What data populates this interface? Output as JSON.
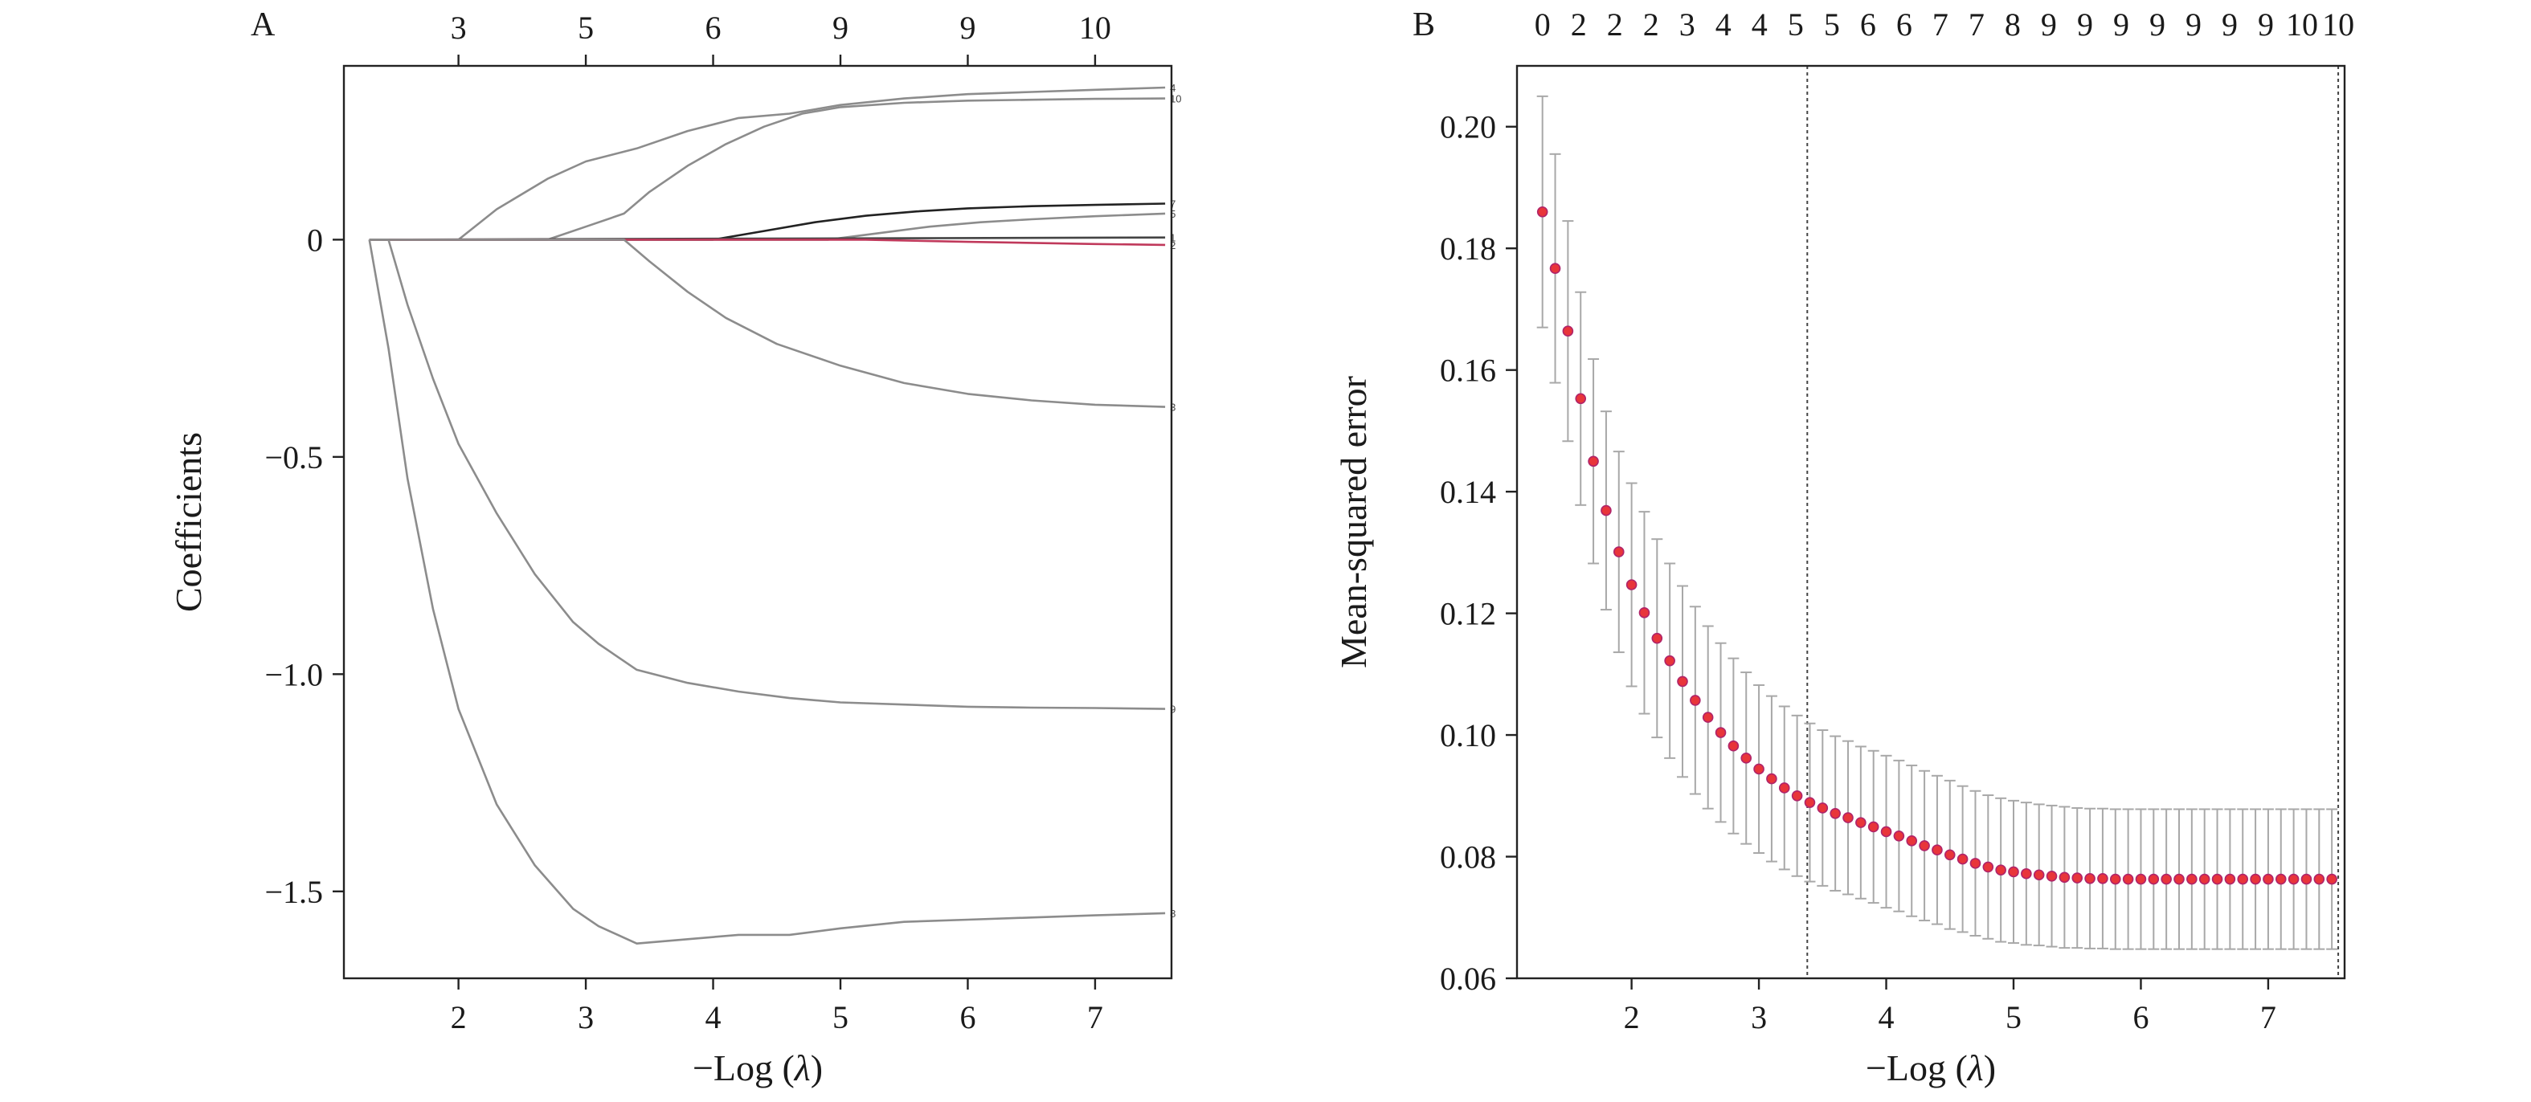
{
  "chart_data": [
    {
      "panel": "A",
      "type": "line",
      "xlabel_prefix": "−Log (",
      "xlabel_symbol": "λ",
      "xlabel_suffix": ")",
      "ylabel": "Coefficients",
      "xlim": [
        1.1,
        7.6
      ],
      "ylim": [
        -1.7,
        0.4
      ],
      "x_ticks": [
        2,
        3,
        4,
        5,
        6,
        7
      ],
      "x_tick_labels": [
        "2",
        "3",
        "4",
        "5",
        "6",
        "7"
      ],
      "y_ticks": [
        0,
        -0.5,
        -1.0,
        -1.5
      ],
      "y_tick_labels": [
        "0",
        "−0.5",
        "−1.0",
        "−1.5"
      ],
      "top_ticks": [
        2.0,
        3.0,
        4.0,
        5.0,
        6.0,
        7.0
      ],
      "top_labels": [
        "3",
        "5",
        "6",
        "9",
        "9",
        "10"
      ],
      "series": [
        {
          "label": "4",
          "color": "#8c8c8c",
          "x": [
            1.3,
            2.0,
            2.3,
            2.7,
            3.0,
            3.4,
            3.8,
            4.2,
            4.6,
            5.0,
            5.5,
            6.0,
            6.5,
            7.0,
            7.55
          ],
          "y": [
            0,
            0,
            0.07,
            0.14,
            0.18,
            0.21,
            0.25,
            0.28,
            0.29,
            0.31,
            0.325,
            0.335,
            0.34,
            0.345,
            0.35
          ]
        },
        {
          "label": "10",
          "color": "#8c8c8c",
          "x": [
            1.3,
            2.7,
            3.0,
            3.3,
            3.5,
            3.8,
            4.1,
            4.4,
            4.7,
            5.0,
            5.5,
            6.0,
            6.5,
            7.0,
            7.55
          ],
          "y": [
            0,
            0,
            0.03,
            0.06,
            0.11,
            0.17,
            0.22,
            0.26,
            0.29,
            0.305,
            0.315,
            0.32,
            0.322,
            0.324,
            0.325
          ]
        },
        {
          "label": "7",
          "color": "#222222",
          "x": [
            1.3,
            4.0,
            4.4,
            4.8,
            5.2,
            5.6,
            6.0,
            6.5,
            7.0,
            7.55
          ],
          "y": [
            0,
            0,
            0.02,
            0.04,
            0.055,
            0.065,
            0.072,
            0.077,
            0.08,
            0.083
          ]
        },
        {
          "label": "5",
          "color": "#8c8c8c",
          "x": [
            1.3,
            4.9,
            5.3,
            5.7,
            6.1,
            6.5,
            7.0,
            7.55
          ],
          "y": [
            0,
            0,
            0.015,
            0.03,
            0.04,
            0.047,
            0.054,
            0.06
          ]
        },
        {
          "label": "1",
          "color": "#444444",
          "x": [
            1.3,
            7.55
          ],
          "y": [
            0,
            0.005
          ]
        },
        {
          "label": "2",
          "color": "#c0395b",
          "x": [
            1.3,
            5.2,
            6.0,
            7.0,
            7.55
          ],
          "y": [
            0,
            0,
            -0.005,
            -0.01,
            -0.012
          ]
        },
        {
          "label": "3",
          "color": "#8c8c8c",
          "x": [
            1.3,
            3.3,
            3.5,
            3.8,
            4.1,
            4.5,
            5.0,
            5.5,
            6.0,
            6.5,
            7.0,
            7.55
          ],
          "y": [
            0,
            0,
            -0.05,
            -0.12,
            -0.18,
            -0.24,
            -0.29,
            -0.33,
            -0.355,
            -0.37,
            -0.38,
            -0.385
          ]
        },
        {
          "label": "9",
          "color": "#8c8c8c",
          "x": [
            1.3,
            1.45,
            1.6,
            1.8,
            2.0,
            2.3,
            2.6,
            2.9,
            3.1,
            3.4,
            3.8,
            4.2,
            4.6,
            5.0,
            5.5,
            6.0,
            6.5,
            7.0,
            7.55
          ],
          "y": [
            0,
            0,
            -0.15,
            -0.32,
            -0.47,
            -0.63,
            -0.77,
            -0.88,
            -0.93,
            -0.99,
            -1.02,
            -1.04,
            -1.055,
            -1.065,
            -1.07,
            -1.075,
            -1.077,
            -1.078,
            -1.08
          ]
        },
        {
          "label": "8",
          "color": "#8c8c8c",
          "x": [
            1.3,
            1.45,
            1.6,
            1.8,
            2.0,
            2.3,
            2.6,
            2.9,
            3.1,
            3.4,
            3.8,
            4.2,
            4.6,
            5.0,
            5.5,
            6.0,
            6.5,
            7.0,
            7.55
          ],
          "y": [
            0,
            -0.25,
            -0.55,
            -0.85,
            -1.08,
            -1.3,
            -1.44,
            -1.54,
            -1.58,
            -1.62,
            -1.61,
            -1.6,
            -1.6,
            -1.585,
            -1.57,
            -1.565,
            -1.56,
            -1.555,
            -1.55
          ]
        }
      ]
    },
    {
      "panel": "B",
      "type": "scatter",
      "xlabel_prefix": "−Log (",
      "xlabel_symbol": "λ",
      "xlabel_suffix": ")",
      "ylabel": "Mean-squared error",
      "xlim": [
        1.1,
        7.6
      ],
      "ylim": [
        0.06,
        0.21
      ],
      "x_ticks": [
        2,
        3,
        4,
        5,
        6,
        7
      ],
      "x_tick_labels": [
        "2",
        "3",
        "4",
        "5",
        "6",
        "7"
      ],
      "y_ticks": [
        0.06,
        0.08,
        0.1,
        0.12,
        0.14,
        0.16,
        0.18,
        0.2
      ],
      "y_tick_labels": [
        "0.06",
        "0.08",
        "0.10",
        "0.12",
        "0.14",
        "0.16",
        "0.18",
        "0.20"
      ],
      "top_labels": [
        "0",
        "2",
        "2",
        "2",
        "3",
        "4",
        "4",
        "5",
        "5",
        "6",
        "6",
        "7",
        "7",
        "8",
        "9",
        "9",
        "9",
        "9",
        "9",
        "9",
        "9",
        "10",
        "10"
      ],
      "top_x_start": 1.3,
      "top_x_end": 7.55,
      "vlines": [
        3.38,
        7.55
      ],
      "x_start": 1.3,
      "x_step": 0.1,
      "mse": [
        0.186,
        0.1767,
        0.1664,
        0.1553,
        0.145,
        0.1369,
        0.1301,
        0.1247,
        0.1201,
        0.1159,
        0.1122,
        0.1088,
        0.1057,
        0.1029,
        0.1004,
        0.0982,
        0.0962,
        0.0944,
        0.0928,
        0.0913,
        0.09,
        0.0889,
        0.088,
        0.0871,
        0.0864,
        0.0856,
        0.0849,
        0.0841,
        0.0834,
        0.0826,
        0.0818,
        0.0811,
        0.0803,
        0.0796,
        0.0789,
        0.0783,
        0.0778,
        0.0775,
        0.0772,
        0.077,
        0.0768,
        0.0766,
        0.0765,
        0.0764,
        0.0764,
        0.0763,
        0.0763,
        0.0763,
        0.0763,
        0.0763,
        0.0763,
        0.0763,
        0.0763,
        0.0763,
        0.0763,
        0.0763,
        0.0763,
        0.0763,
        0.0763,
        0.0763,
        0.0763,
        0.0763,
        0.0763
      ],
      "upper": [
        0.205,
        0.1955,
        0.1845,
        0.1728,
        0.1618,
        0.1532,
        0.1466,
        0.1414,
        0.1367,
        0.1322,
        0.1282,
        0.1245,
        0.1211,
        0.1179,
        0.1151,
        0.1126,
        0.1103,
        0.1082,
        0.1064,
        0.1047,
        0.1032,
        0.1019,
        0.1008,
        0.0998,
        0.099,
        0.0981,
        0.0974,
        0.0966,
        0.0958,
        0.095,
        0.0941,
        0.0933,
        0.0925,
        0.0916,
        0.0908,
        0.0901,
        0.0896,
        0.0892,
        0.0889,
        0.0886,
        0.0884,
        0.0882,
        0.088,
        0.0879,
        0.0879,
        0.0878,
        0.0878,
        0.0878,
        0.0878,
        0.0878,
        0.0878,
        0.0878,
        0.0878,
        0.0878,
        0.0878,
        0.0878,
        0.0878,
        0.0878,
        0.0878,
        0.0878,
        0.0878,
        0.0878,
        0.0878
      ],
      "lower": [
        0.167,
        0.1579,
        0.1483,
        0.1378,
        0.1282,
        0.1206,
        0.1136,
        0.108,
        0.1035,
        0.0996,
        0.0962,
        0.0931,
        0.0903,
        0.0879,
        0.0857,
        0.0838,
        0.0821,
        0.0806,
        0.0792,
        0.0779,
        0.0768,
        0.0759,
        0.0752,
        0.0744,
        0.0738,
        0.0731,
        0.0724,
        0.0716,
        0.071,
        0.0702,
        0.0695,
        0.0689,
        0.0681,
        0.0676,
        0.067,
        0.0665,
        0.066,
        0.0658,
        0.0655,
        0.0654,
        0.0652,
        0.065,
        0.065,
        0.0649,
        0.0649,
        0.0648,
        0.0648,
        0.0648,
        0.0648,
        0.0648,
        0.0648,
        0.0648,
        0.0648,
        0.0648,
        0.0648,
        0.0648,
        0.0648,
        0.0648,
        0.0648,
        0.0648,
        0.0648,
        0.0648,
        0.0648
      ],
      "point_color": "#e8353a",
      "point_edge": "#b0246a",
      "error_bar_color": "#a8a8a8"
    }
  ]
}
